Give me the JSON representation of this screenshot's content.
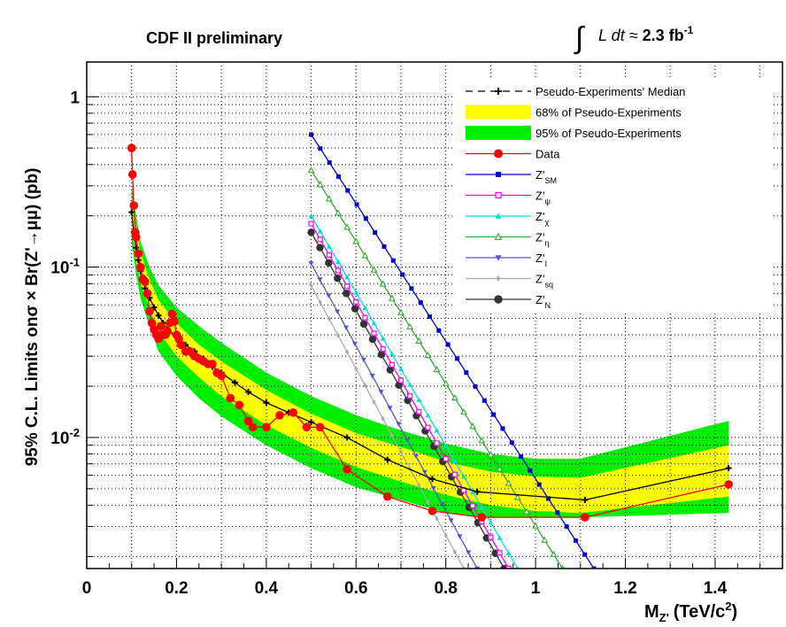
{
  "header": {
    "experiment_label": "CDF II preliminary",
    "integral_sign": "∫",
    "lumi_prefix": "L dt ≈ ",
    "lumi_value": "2.3 fb",
    "lumi_exp": "-1"
  },
  "colors": {
    "band95": "#00ee00",
    "band68": "#ffff00",
    "grid": "#000000",
    "median": "#000000",
    "data": "#ff0000"
  },
  "chart_data": {
    "type": "line",
    "title": "",
    "xlabel_main": "M",
    "xlabel_sub": "Z'",
    "xlabel_units": "(TeV/c",
    "xlabel_units_exp": "2",
    "xlabel_close": ")",
    "ylabel": "95% C.L. Limits onσ × Br(Z'→μμ) (pb)",
    "xlim": [
      0,
      1.55
    ],
    "ylim": [
      0.0017,
      1.6
    ],
    "yscale": "log",
    "grid": true,
    "legend_placement": "top-right",
    "x_ticks": [
      {
        "v": 0,
        "label": "0"
      },
      {
        "v": 0.2,
        "label": "0.2"
      },
      {
        "v": 0.4,
        "label": "0.4"
      },
      {
        "v": 0.6,
        "label": "0.6"
      },
      {
        "v": 0.8,
        "label": "0.8"
      },
      {
        "v": 1.0,
        "label": "1"
      },
      {
        "v": 1.2,
        "label": "1.2"
      },
      {
        "v": 1.4,
        "label": "1.4"
      }
    ],
    "y_ticks": [
      {
        "v": 1,
        "base": "1",
        "exp": ""
      },
      {
        "v": 0.1,
        "base": "10",
        "exp": "-1"
      },
      {
        "v": 0.01,
        "base": "10",
        "exp": "-2"
      }
    ],
    "bands": [
      {
        "name": "95% of Pseudo-Experiments",
        "color": "#00ee00",
        "x": [
          0.1,
          0.11,
          0.12,
          0.14,
          0.16,
          0.2,
          0.25,
          0.3,
          0.4,
          0.5,
          0.6,
          0.7,
          0.8,
          0.9,
          1.0,
          1.1,
          1.43
        ],
        "lo": [
          0.14,
          0.09,
          0.065,
          0.045,
          0.032,
          0.023,
          0.017,
          0.0133,
          0.009,
          0.0066,
          0.0051,
          0.0043,
          0.0036,
          0.0034,
          0.0034,
          0.0034,
          0.0036
        ],
        "hi": [
          0.3,
          0.2,
          0.14,
          0.1,
          0.078,
          0.058,
          0.045,
          0.036,
          0.024,
          0.0175,
          0.0135,
          0.011,
          0.0092,
          0.008,
          0.0075,
          0.0075,
          0.0125
        ]
      },
      {
        "name": "68% of Pseudo-Experiments",
        "color": "#ffff00",
        "x": [
          0.1,
          0.11,
          0.12,
          0.14,
          0.16,
          0.2,
          0.25,
          0.3,
          0.4,
          0.5,
          0.6,
          0.7,
          0.8,
          0.9,
          1.0,
          1.1,
          1.43
        ],
        "lo": [
          0.17,
          0.11,
          0.08,
          0.057,
          0.042,
          0.03,
          0.0225,
          0.0175,
          0.0118,
          0.0087,
          0.0067,
          0.0055,
          0.0046,
          0.004,
          0.0037,
          0.0036,
          0.0045
        ],
        "hi": [
          0.25,
          0.17,
          0.12,
          0.085,
          0.064,
          0.047,
          0.035,
          0.028,
          0.019,
          0.0138,
          0.0106,
          0.0088,
          0.0072,
          0.0063,
          0.0059,
          0.0058,
          0.009
        ]
      }
    ],
    "series": [
      {
        "name": "Pseudo-Experiments' Median",
        "color": "#000000",
        "style": "dashed",
        "marker": "plus",
        "x": [
          0.1,
          0.105,
          0.11,
          0.115,
          0.12,
          0.125,
          0.13,
          0.14,
          0.15,
          0.16,
          0.17,
          0.18,
          0.2,
          0.22,
          0.24,
          0.26,
          0.28,
          0.3,
          0.33,
          0.36,
          0.4,
          0.45,
          0.5,
          0.58,
          0.67,
          0.77,
          0.87,
          1.11,
          1.43
        ],
        "y": [
          0.21,
          0.16,
          0.13,
          0.11,
          0.095,
          0.085,
          0.075,
          0.066,
          0.058,
          0.052,
          0.047,
          0.043,
          0.039,
          0.035,
          0.032,
          0.029,
          0.026,
          0.024,
          0.021,
          0.0185,
          0.016,
          0.014,
          0.0123,
          0.01,
          0.0074,
          0.0057,
          0.0048,
          0.0043,
          0.0066
        ]
      },
      {
        "name": "Data",
        "color": "#ff0000",
        "style": "solid",
        "marker": "circle",
        "x": [
          0.1,
          0.102,
          0.105,
          0.108,
          0.11,
          0.115,
          0.12,
          0.125,
          0.13,
          0.135,
          0.14,
          0.145,
          0.15,
          0.155,
          0.16,
          0.165,
          0.17,
          0.175,
          0.18,
          0.185,
          0.19,
          0.195,
          0.2,
          0.205,
          0.21,
          0.22,
          0.23,
          0.24,
          0.25,
          0.26,
          0.27,
          0.28,
          0.29,
          0.3,
          0.32,
          0.34,
          0.36,
          0.37,
          0.4,
          0.43,
          0.46,
          0.49,
          0.52,
          0.58,
          0.67,
          0.77,
          0.88,
          1.11,
          1.43
        ],
        "y": [
          0.5,
          0.35,
          0.23,
          0.16,
          0.15,
          0.12,
          0.1,
          0.085,
          0.082,
          0.07,
          0.055,
          0.047,
          0.043,
          0.04,
          0.038,
          0.045,
          0.04,
          0.04,
          0.042,
          0.047,
          0.053,
          0.048,
          0.04,
          0.038,
          0.035,
          0.032,
          0.032,
          0.03,
          0.029,
          0.028,
          0.027,
          0.027,
          0.024,
          0.023,
          0.017,
          0.0155,
          0.0125,
          0.0115,
          0.0115,
          0.0135,
          0.014,
          0.0115,
          0.0115,
          0.0065,
          0.0045,
          0.0037,
          0.0034,
          0.0034,
          0.0053
        ]
      },
      {
        "name": "SM",
        "color": "#0000cc",
        "style": "solid",
        "marker": "square",
        "x": [
          0.5,
          1.13
        ],
        "y": [
          0.6,
          0.0017
        ]
      },
      {
        "name": "ψ",
        "color": "#ff00ff",
        "style": "solid",
        "marker": "open-square",
        "x": [
          0.5,
          0.94
        ],
        "y": [
          0.18,
          0.0017
        ]
      },
      {
        "name": "χ",
        "color": "#00dddd",
        "style": "solid",
        "marker": "triangle",
        "x": [
          0.5,
          0.96
        ],
        "y": [
          0.2,
          0.0017
        ]
      },
      {
        "name": "η",
        "color": "#33aa33",
        "style": "solid",
        "marker": "open-triangle",
        "x": [
          0.5,
          1.06
        ],
        "y": [
          0.37,
          0.0017
        ]
      },
      {
        "name": "I",
        "color": "#5555cc",
        "style": "solid",
        "marker": "down-triangle",
        "x": [
          0.5,
          0.87
        ],
        "y": [
          0.105,
          0.0017
        ]
      },
      {
        "name": "sq",
        "color": "#aaaaaa",
        "style": "solid",
        "marker": "diamond",
        "x": [
          0.5,
          0.84
        ],
        "y": [
          0.078,
          0.0017
        ]
      },
      {
        "name": "N",
        "color": "#333333",
        "style": "solid",
        "marker": "hexagon",
        "x": [
          0.5,
          0.93
        ],
        "y": [
          0.16,
          0.0017
        ]
      }
    ],
    "legend": [
      {
        "kind": "line",
        "series": "Pseudo-Experiments' Median",
        "label": "Pseudo-Experiments' Median",
        "sub": ""
      },
      {
        "kind": "band",
        "series": "68% of Pseudo-Experiments",
        "label": "68% of Pseudo-Experiments",
        "sub": ""
      },
      {
        "kind": "band",
        "series": "95% of Pseudo-Experiments",
        "label": "95% of Pseudo-Experiments",
        "sub": ""
      },
      {
        "kind": "line",
        "series": "Data",
        "label": "Data",
        "sub": ""
      },
      {
        "kind": "line",
        "series": "SM",
        "label": "Z'",
        "sub": "SM"
      },
      {
        "kind": "line",
        "series": "ψ",
        "label": "Z'",
        "sub": "ψ"
      },
      {
        "kind": "line",
        "series": "χ",
        "label": "Z'",
        "sub": "χ"
      },
      {
        "kind": "line",
        "series": "η",
        "label": "Z'",
        "sub": "η"
      },
      {
        "kind": "line",
        "series": "I",
        "label": "Z'",
        "sub": "I"
      },
      {
        "kind": "line",
        "series": "sq",
        "label": "Z'",
        "sub": "sq"
      },
      {
        "kind": "line",
        "series": "N",
        "label": "Z'",
        "sub": "N"
      }
    ]
  }
}
